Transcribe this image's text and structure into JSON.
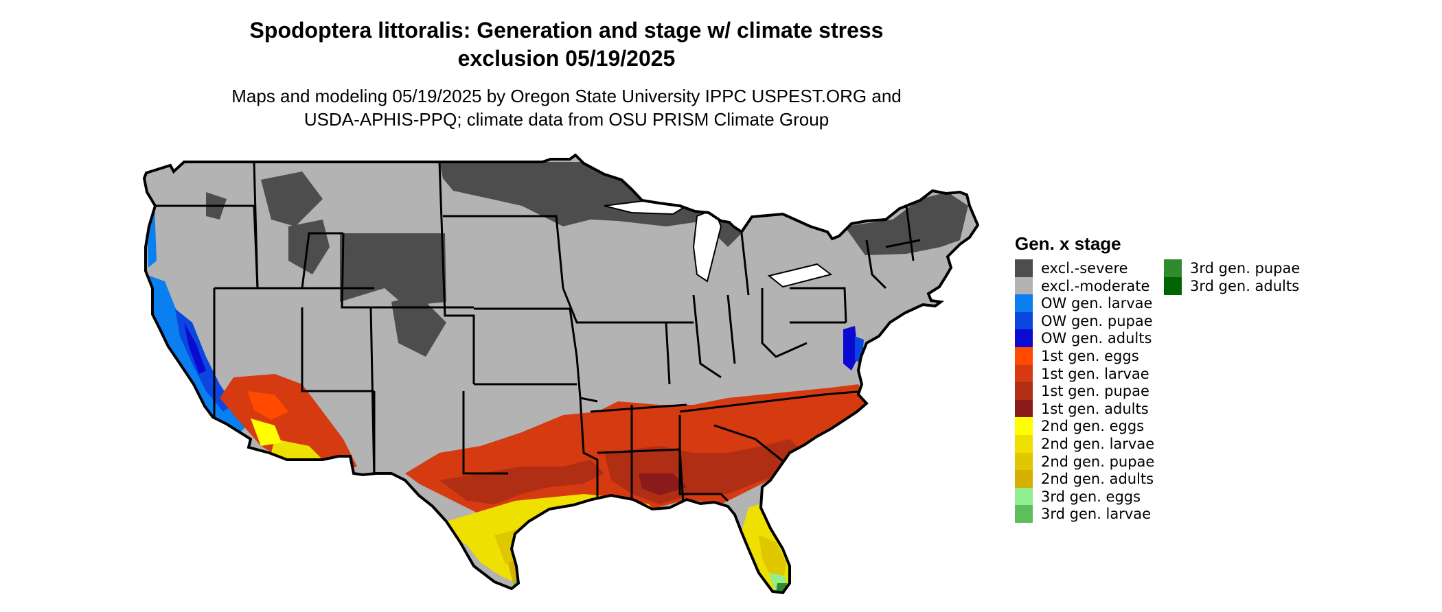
{
  "title_line1": "Spodoptera littoralis: Generation and stage w/ climate stress",
  "title_line2": "exclusion 05/19/2025",
  "subtitle_line1": "Maps and modeling 05/19/2025 by Oregon State University IPPC USPEST.ORG and",
  "subtitle_line2": "USDA-APHIS-PPQ; climate data from OSU PRISM Climate Group",
  "legend": {
    "title": "Gen. x stage",
    "items": [
      {
        "label": "excl.-severe",
        "color": "#4d4d4d"
      },
      {
        "label": "excl.-moderate",
        "color": "#b3b3b3"
      },
      {
        "label": "OW gen. larvae",
        "color": "#0a7ff0"
      },
      {
        "label": "OW gen. pupae",
        "color": "#0b46e0"
      },
      {
        "label": "OW gen. adults",
        "color": "#0a0ad0"
      },
      {
        "label": "1st gen. eggs",
        "color": "#ff4a00"
      },
      {
        "label": "1st gen. larvae",
        "color": "#d63a10"
      },
      {
        "label": "1st gen. pupae",
        "color": "#b02e14"
      },
      {
        "label": "1st gen. adults",
        "color": "#8b1a1a"
      },
      {
        "label": "2nd gen. eggs",
        "color": "#ffff00"
      },
      {
        "label": "2nd gen. larvae",
        "color": "#eee000"
      },
      {
        "label": "2nd gen. pupae",
        "color": "#e0c800"
      },
      {
        "label": "2nd gen. adults",
        "color": "#d4b000"
      },
      {
        "label": "3rd gen. eggs",
        "color": "#90ee90"
      },
      {
        "label": "3rd gen. larvae",
        "color": "#5cbf5c"
      },
      {
        "label": "3rd gen. pupae",
        "color": "#2e8b2e"
      },
      {
        "label": "3rd gen. adults",
        "color": "#006400"
      }
    ]
  }
}
